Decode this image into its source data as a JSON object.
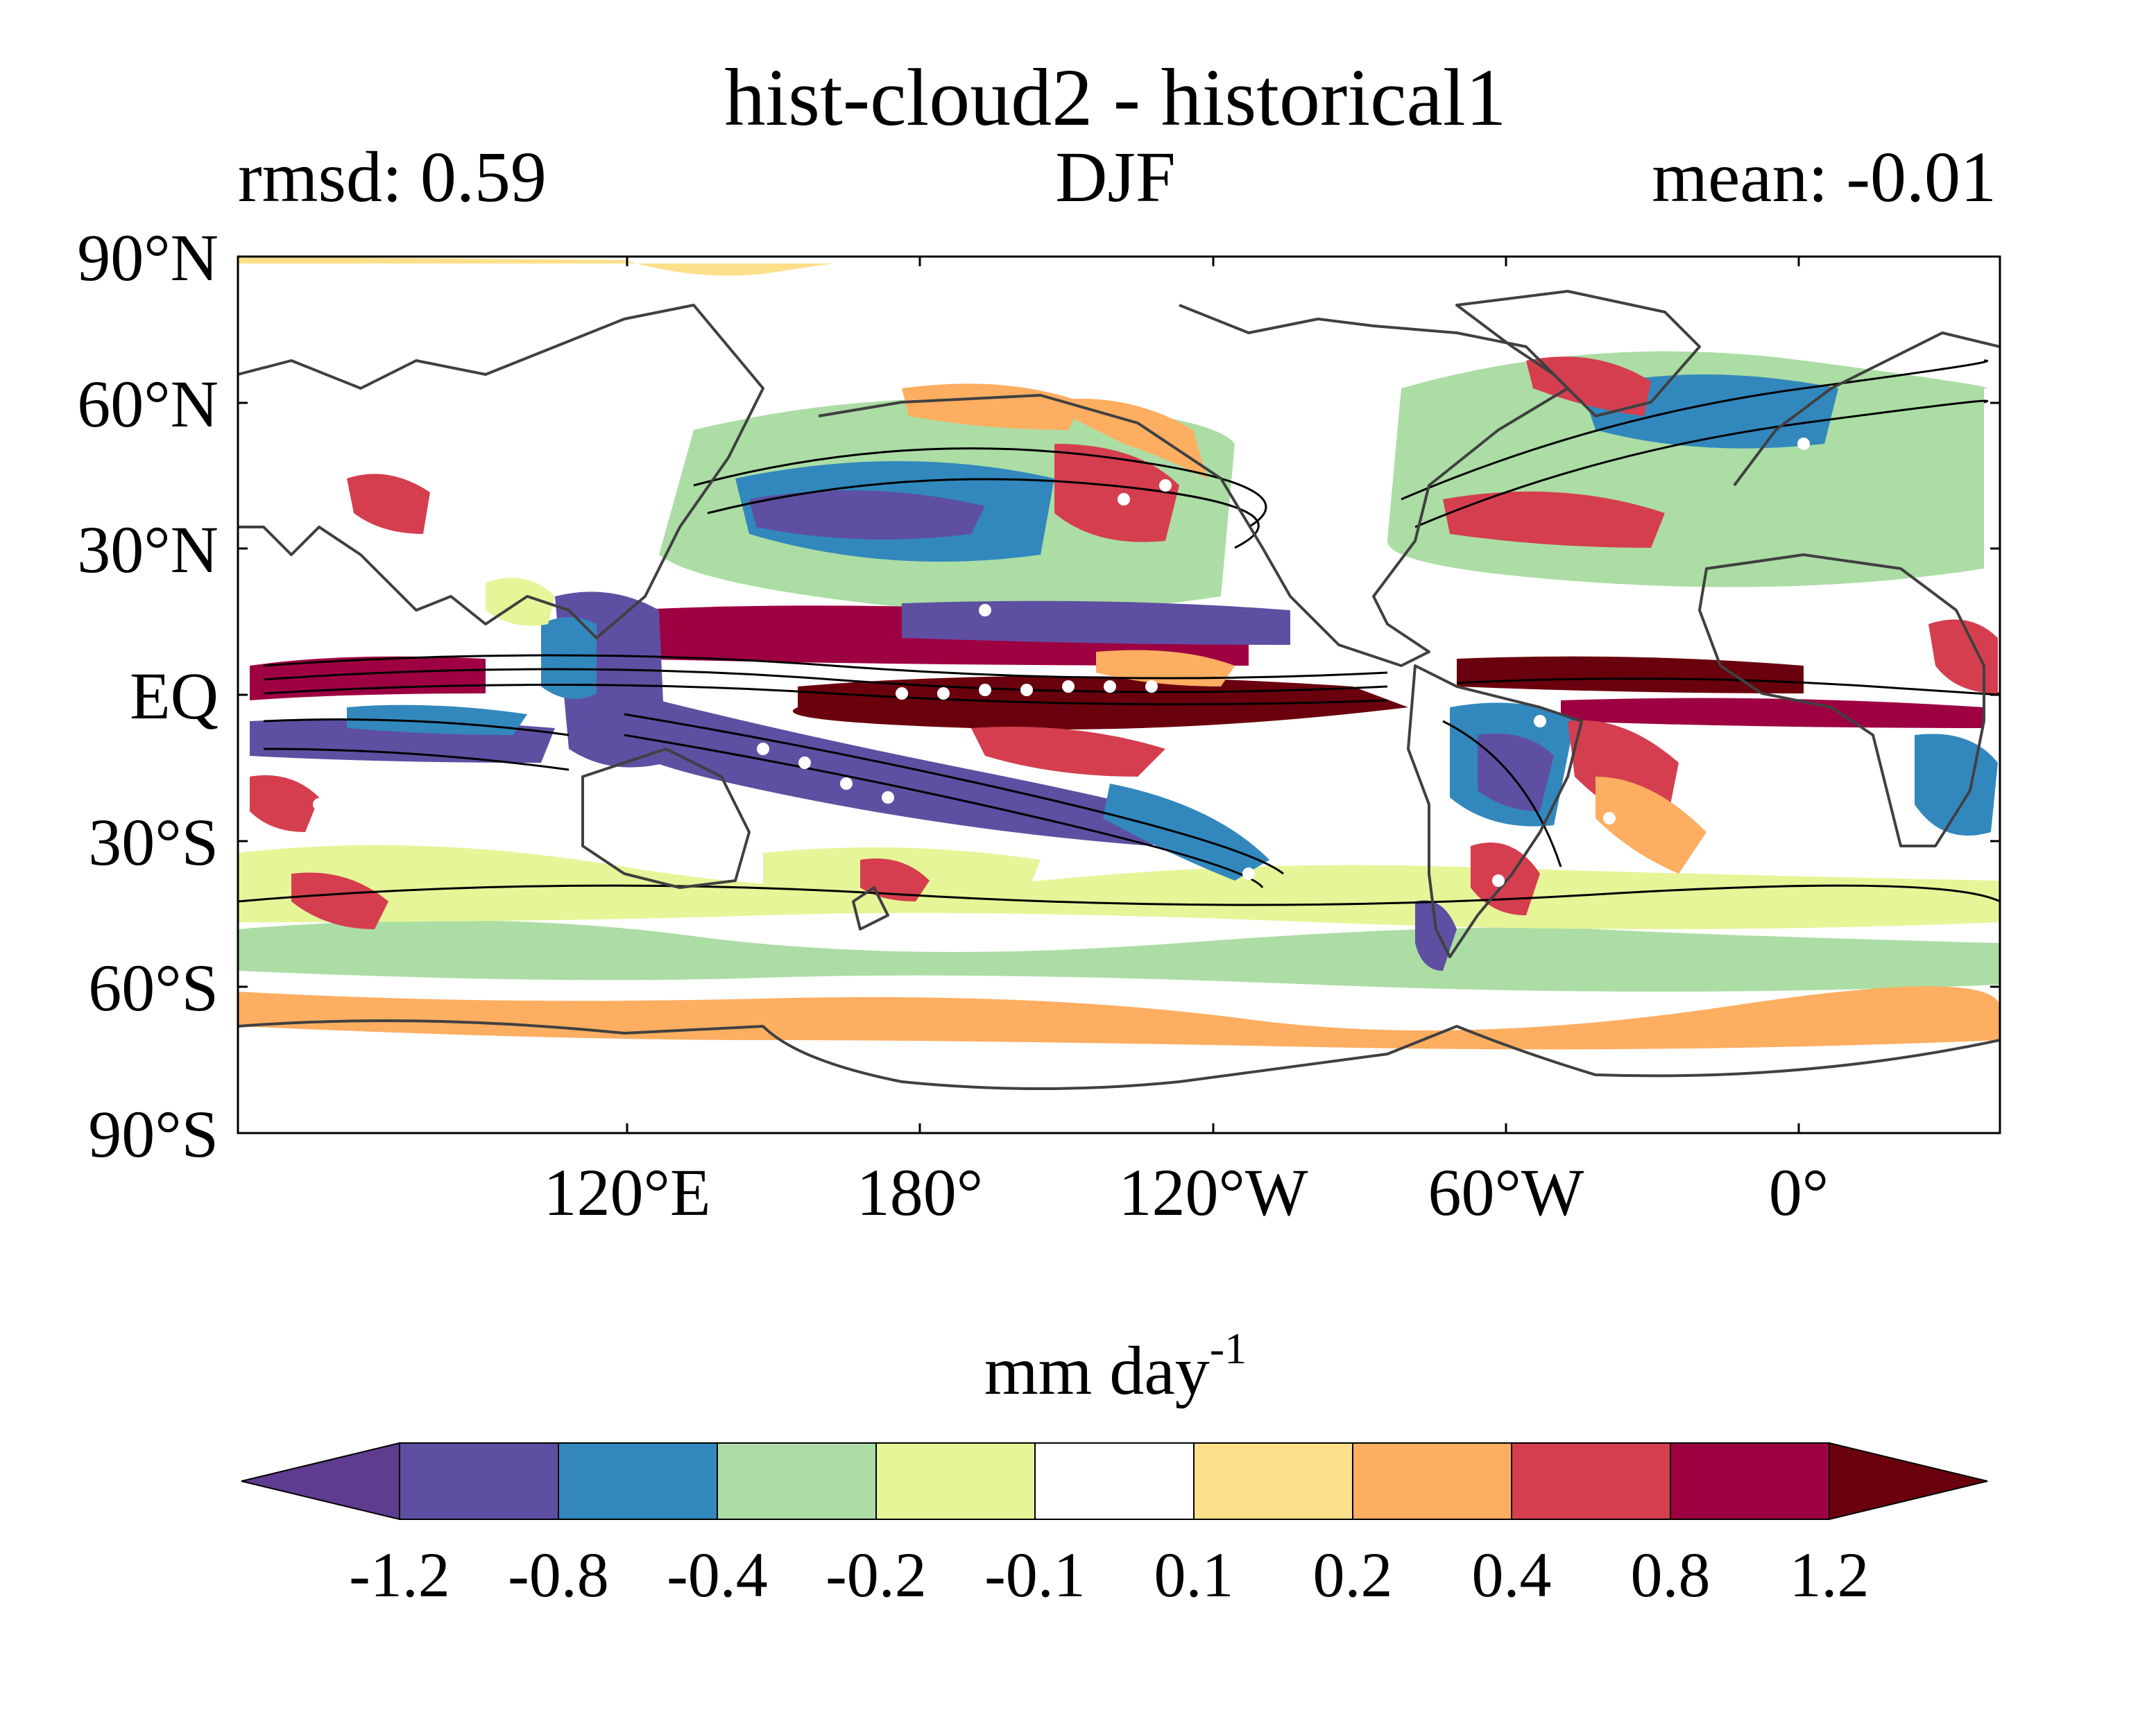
{
  "title": "hist-cloud2 - historical1",
  "left_string": "rmsd: 0.59",
  "center_string": "DJF",
  "right_string": "mean: -0.01",
  "lat_labels": [
    "90°N",
    "60°N",
    "30°N",
    "EQ",
    "30°S",
    "60°S",
    "90°S"
  ],
  "lon_labels": [
    "120°E",
    "180°",
    "120°W",
    "60°W",
    "0°"
  ],
  "units": {
    "main": "mm day",
    "superscript": "-1"
  },
  "colorbar": {
    "labels": [
      "-1.2",
      "-0.8",
      "-0.4",
      "-0.2",
      "-0.1",
      "0.1",
      "0.2",
      "0.4",
      "0.8",
      "1.2"
    ],
    "colors": [
      "#5e3c8f",
      "#5e4fa2",
      "#3288bd",
      "#abdda4",
      "#e6f598",
      "#ffffff",
      "#fee08b",
      "#fdae61",
      "#d53e4f",
      "#9e0142",
      "#6a000d"
    ]
  }
}
